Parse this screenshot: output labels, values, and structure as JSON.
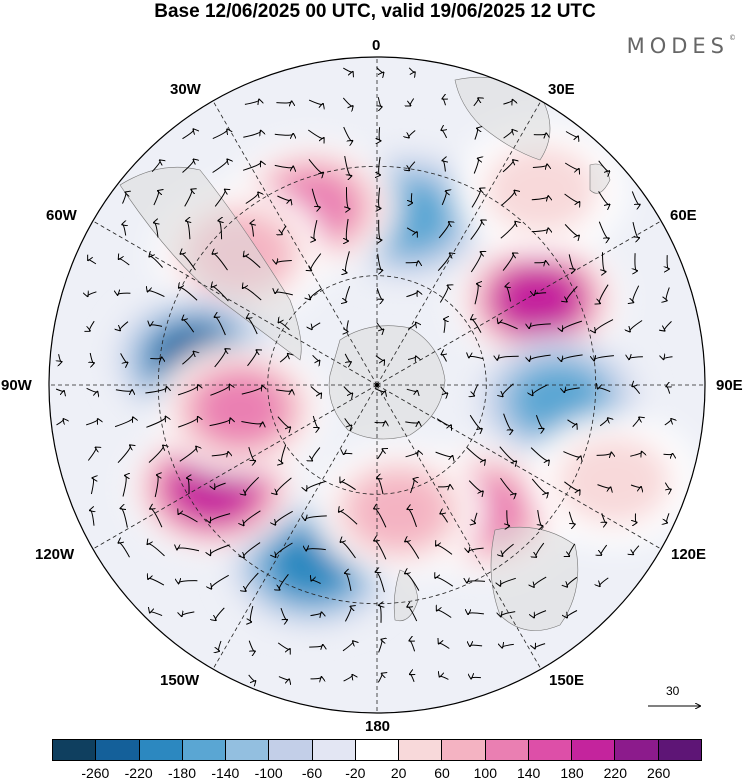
{
  "title": "Base 12/06/2025 00 UTC, valid 19/06/2025 12 UTC",
  "brand": "MODES",
  "brand_mark": "©",
  "longitude_labels": {
    "lon_0": "0",
    "lon_30e": "30E",
    "lon_60e": "60E",
    "lon_90e": "90E",
    "lon_120e": "120E",
    "lon_150e": "150E",
    "lon_180": "180",
    "lon_150w": "150W",
    "lon_120w": "120W",
    "lon_90w": "90W",
    "lon_60w": "60W",
    "lon_30w": "30W"
  },
  "reference_vector": {
    "value": "30"
  },
  "colorbar": {
    "colors": [
      "#0f3f5f",
      "#14609a",
      "#2c88c0",
      "#5aa6d3",
      "#93bfe0",
      "#c3cfe8",
      "#e3e6f3",
      "#ffffff",
      "#f8d9da",
      "#f4b3c2",
      "#ea7fb2",
      "#dd4fa8",
      "#c4249d",
      "#8c1b8c",
      "#5e1576"
    ],
    "ticks": [
      "-260",
      "-220",
      "-180",
      "-140",
      "-100",
      "-60",
      "-20",
      "20",
      "60",
      "100",
      "140",
      "180",
      "220",
      "260"
    ]
  },
  "anomaly_features": [
    {
      "lon": 10,
      "lat": -43,
      "value": -160
    },
    {
      "lon": -20,
      "lat": -38,
      "value": 170
    },
    {
      "lon": -46,
      "lat": -38,
      "value": 140
    },
    {
      "lon": 62,
      "lat": -40,
      "value": 250
    },
    {
      "lon": 95,
      "lat": -40,
      "value": -200
    },
    {
      "lon": 140,
      "lat": -45,
      "value": 150
    },
    {
      "lon": -160,
      "lat": -38,
      "value": -230
    },
    {
      "lon": -122,
      "lat": -37,
      "value": 270
    },
    {
      "lon": -82,
      "lat": -40,
      "value": -250
    },
    {
      "lon": -100,
      "lat": -52,
      "value": 150
    },
    {
      "lon": 170,
      "lat": -55,
      "value": 110
    },
    {
      "lon": 40,
      "lat": -20,
      "value": 60
    },
    {
      "lon": 112,
      "lat": -20,
      "value": 50
    }
  ]
}
